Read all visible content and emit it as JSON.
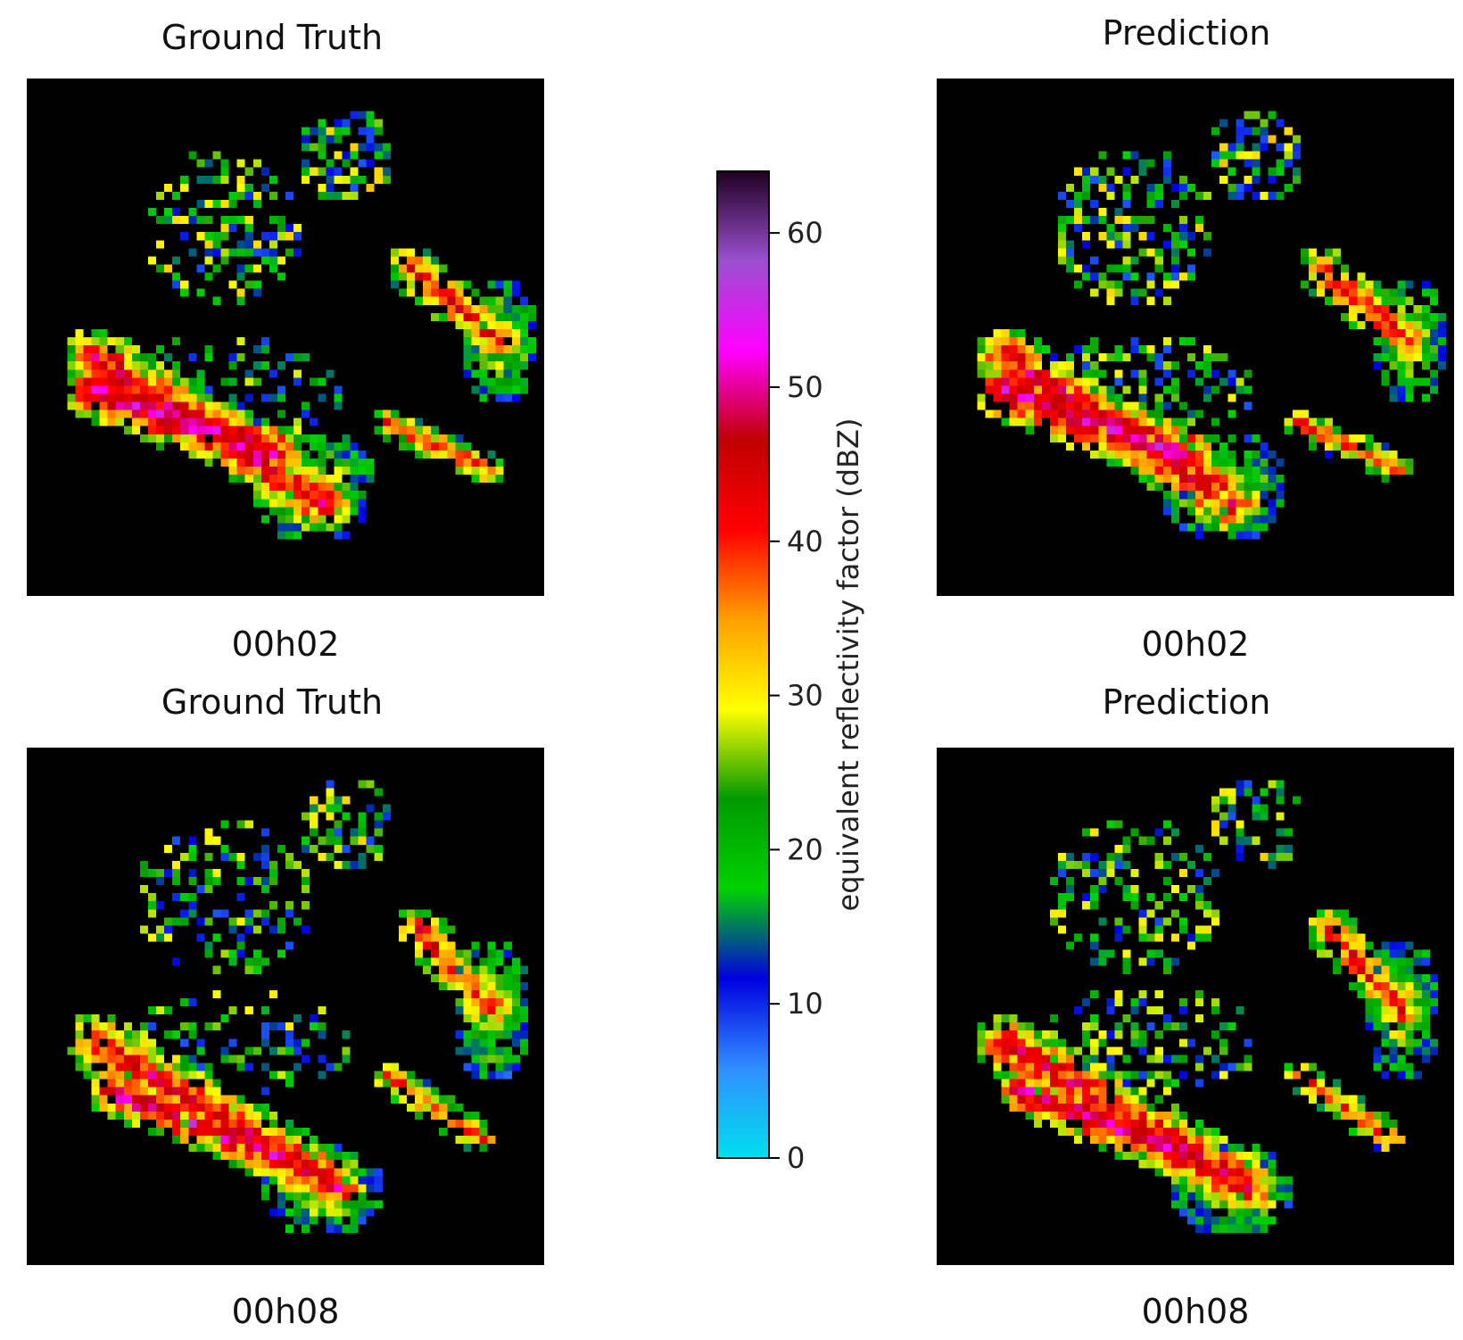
{
  "chart_data": [
    {
      "type": "heatmap",
      "title": "Ground Truth",
      "caption": "00h02",
      "grid": [
        64,
        64
      ],
      "seed": 11,
      "cells": [
        {
          "shape": "blob",
          "cx": 35,
          "cy": 50,
          "rx": 8,
          "ry": 7,
          "peak": 30,
          "noise": 0.35
        },
        {
          "shape": "band",
          "x1": 8,
          "y1": 34,
          "x2": 36,
          "y2": 52,
          "w": 4,
          "peak": 45,
          "noise": 0.25
        },
        {
          "shape": "band",
          "x1": 8,
          "y1": 38,
          "x2": 30,
          "y2": 46,
          "w": 4,
          "peak": 50,
          "noise": 0.3
        },
        {
          "shape": "blob",
          "cx": 58,
          "cy": 32,
          "rx": 5,
          "ry": 8,
          "peak": 30,
          "noise": 0.3
        },
        {
          "shape": "band",
          "x1": 47,
          "y1": 23,
          "x2": 58,
          "y2": 32,
          "w": 3,
          "peak": 42,
          "noise": 0.4
        },
        {
          "shape": "band",
          "x1": 44,
          "y1": 42,
          "x2": 57,
          "y2": 48,
          "w": 2,
          "peak": 40,
          "noise": 0.45
        },
        {
          "shape": "scatter",
          "cx": 24,
          "cy": 18,
          "rx": 10,
          "ry": 10,
          "peak": 24,
          "noise": 0.6
        },
        {
          "shape": "scatter",
          "cx": 39,
          "cy": 9,
          "rx": 6,
          "ry": 6,
          "peak": 25,
          "noise": 0.5
        },
        {
          "shape": "scatter",
          "cx": 25,
          "cy": 38,
          "rx": 14,
          "ry": 7,
          "peak": 22,
          "noise": 0.7
        }
      ]
    },
    {
      "type": "heatmap",
      "title": "Prediction",
      "caption": "00h02",
      "grid": [
        64,
        64
      ],
      "seed": 23,
      "cells": [
        {
          "shape": "blob",
          "cx": 35,
          "cy": 50,
          "rx": 8,
          "ry": 7,
          "peak": 30,
          "noise": 0.3
        },
        {
          "shape": "band",
          "x1": 8,
          "y1": 34,
          "x2": 36,
          "y2": 52,
          "w": 4,
          "peak": 45,
          "noise": 0.25
        },
        {
          "shape": "band",
          "x1": 8,
          "y1": 38,
          "x2": 30,
          "y2": 46,
          "w": 4,
          "peak": 50,
          "noise": 0.3
        },
        {
          "shape": "blob",
          "cx": 58,
          "cy": 32,
          "rx": 5,
          "ry": 8,
          "peak": 30,
          "noise": 0.3
        },
        {
          "shape": "band",
          "x1": 47,
          "y1": 23,
          "x2": 58,
          "y2": 32,
          "w": 3,
          "peak": 42,
          "noise": 0.4
        },
        {
          "shape": "band",
          "x1": 44,
          "y1": 42,
          "x2": 57,
          "y2": 48,
          "w": 2,
          "peak": 40,
          "noise": 0.45
        },
        {
          "shape": "scatter",
          "cx": 24,
          "cy": 18,
          "rx": 10,
          "ry": 10,
          "peak": 24,
          "noise": 0.55
        },
        {
          "shape": "scatter",
          "cx": 39,
          "cy": 9,
          "rx": 6,
          "ry": 6,
          "peak": 25,
          "noise": 0.5
        },
        {
          "shape": "scatter",
          "cx": 25,
          "cy": 38,
          "rx": 14,
          "ry": 7,
          "peak": 22,
          "noise": 0.65
        }
      ]
    },
    {
      "type": "heatmap",
      "title": "Ground Truth",
      "caption": "00h08",
      "grid": [
        64,
        64
      ],
      "seed": 37,
      "cells": [
        {
          "shape": "blob",
          "cx": 36,
          "cy": 54,
          "rx": 8,
          "ry": 6,
          "peak": 30,
          "noise": 0.35
        },
        {
          "shape": "band",
          "x1": 8,
          "y1": 36,
          "x2": 38,
          "y2": 54,
          "w": 4,
          "peak": 45,
          "noise": 0.25
        },
        {
          "shape": "band",
          "x1": 10,
          "y1": 42,
          "x2": 30,
          "y2": 50,
          "w": 3,
          "peak": 50,
          "noise": 0.3
        },
        {
          "shape": "blob",
          "cx": 57,
          "cy": 32,
          "rx": 5,
          "ry": 9,
          "peak": 30,
          "noise": 0.3
        },
        {
          "shape": "band",
          "x1": 48,
          "y1": 22,
          "x2": 57,
          "y2": 32,
          "w": 3,
          "peak": 42,
          "noise": 0.4
        },
        {
          "shape": "band",
          "x1": 44,
          "y1": 40,
          "x2": 56,
          "y2": 48,
          "w": 2,
          "peak": 40,
          "noise": 0.45
        },
        {
          "shape": "scatter",
          "cx": 24,
          "cy": 18,
          "rx": 11,
          "ry": 10,
          "peak": 22,
          "noise": 0.65
        },
        {
          "shape": "scatter",
          "cx": 39,
          "cy": 9,
          "rx": 6,
          "ry": 6,
          "peak": 24,
          "noise": 0.5
        },
        {
          "shape": "scatter",
          "cx": 26,
          "cy": 36,
          "rx": 14,
          "ry": 7,
          "peak": 22,
          "noise": 0.7
        }
      ]
    },
    {
      "type": "heatmap",
      "title": "Prediction",
      "caption": "00h08",
      "grid": [
        64,
        64
      ],
      "seed": 41,
      "cells": [
        {
          "shape": "blob",
          "cx": 36,
          "cy": 54,
          "rx": 8,
          "ry": 6,
          "peak": 30,
          "noise": 0.3
        },
        {
          "shape": "band",
          "x1": 8,
          "y1": 36,
          "x2": 38,
          "y2": 54,
          "w": 4,
          "peak": 45,
          "noise": 0.25
        },
        {
          "shape": "band",
          "x1": 10,
          "y1": 42,
          "x2": 30,
          "y2": 50,
          "w": 3,
          "peak": 50,
          "noise": 0.3
        },
        {
          "shape": "blob",
          "cx": 57,
          "cy": 32,
          "rx": 5,
          "ry": 9,
          "peak": 30,
          "noise": 0.3
        },
        {
          "shape": "band",
          "x1": 48,
          "y1": 22,
          "x2": 57,
          "y2": 32,
          "w": 3,
          "peak": 42,
          "noise": 0.4
        },
        {
          "shape": "band",
          "x1": 44,
          "y1": 40,
          "x2": 56,
          "y2": 48,
          "w": 2,
          "peak": 40,
          "noise": 0.45
        },
        {
          "shape": "scatter",
          "cx": 24,
          "cy": 18,
          "rx": 11,
          "ry": 10,
          "peak": 23,
          "noise": 0.6
        },
        {
          "shape": "scatter",
          "cx": 39,
          "cy": 9,
          "rx": 6,
          "ry": 6,
          "peak": 24,
          "noise": 0.5
        },
        {
          "shape": "scatter",
          "cx": 26,
          "cy": 36,
          "rx": 14,
          "ry": 7,
          "peak": 22,
          "noise": 0.65
        }
      ]
    }
  ],
  "colorbar": {
    "label": "equivalent reflectivity factor (dBZ)",
    "range": [
      0,
      64
    ],
    "ticks": [
      0,
      10,
      20,
      30,
      40,
      50,
      60
    ],
    "colors": [
      "#00e0ee",
      "#2f8fff",
      "#0000e0",
      "#00d200",
      "#009a00",
      "#ffff00",
      "#ffa000",
      "#ff0000",
      "#c00000",
      "#ff00ff",
      "#9a50d0",
      "#200020"
    ]
  }
}
